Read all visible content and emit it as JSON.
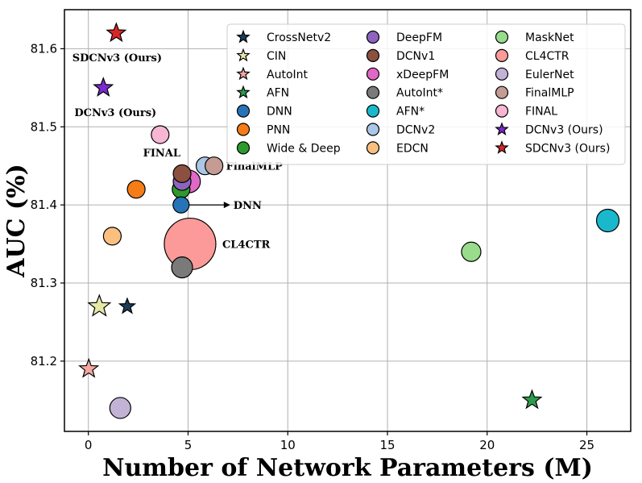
{
  "chart_data": {
    "type": "scatter",
    "title": "",
    "xlabel": "Number of Network Parameters (M)",
    "ylabel": "AUC (%)",
    "xlim": [
      -1.2,
      27.2
    ],
    "ylim": [
      81.11,
      81.65
    ],
    "xticks": [
      0,
      5,
      10,
      15,
      20,
      25
    ],
    "yticks": [
      81.2,
      81.3,
      81.4,
      81.5,
      81.6
    ],
    "grid": true,
    "legend_position": "top-right",
    "series": [
      {
        "name": "CrossNetv2",
        "marker": "star",
        "color": "#1c3d5a",
        "size": 10,
        "x": 1.95,
        "y": 81.27
      },
      {
        "name": "CIN",
        "marker": "star",
        "color": "#e6e8a8",
        "size": 14,
        "x": 0.55,
        "y": 81.27
      },
      {
        "name": "AutoInt",
        "marker": "star",
        "color": "#f4a6a0",
        "size": 12,
        "x": 0.02,
        "y": 81.19
      },
      {
        "name": "AFN",
        "marker": "star",
        "color": "#2e9a4e",
        "size": 12,
        "x": 22.25,
        "y": 81.15
      },
      {
        "name": "DNN",
        "marker": "circle",
        "color": "#2773b8",
        "size": 10,
        "x": 4.65,
        "y": 81.4
      },
      {
        "name": "PNN",
        "marker": "circle",
        "color": "#f57c16",
        "size": 11,
        "x": 2.4,
        "y": 81.42
      },
      {
        "name": "Wide & Deep",
        "marker": "circle",
        "color": "#2e9a2e",
        "size": 11,
        "x": 4.65,
        "y": 81.42
      },
      {
        "name": "DeepFM",
        "marker": "circle",
        "color": "#8e63c0",
        "size": 11,
        "x": 4.7,
        "y": 81.43
      },
      {
        "name": "DCNv1",
        "marker": "circle",
        "color": "#8b5040",
        "size": 11,
        "x": 4.7,
        "y": 81.44
      },
      {
        "name": "xDeepFM",
        "marker": "circle",
        "color": "#e068c6",
        "size": 14,
        "x": 5.05,
        "y": 81.43
      },
      {
        "name": "AutoInt*",
        "marker": "circle",
        "color": "#7a7a7a",
        "size": 13,
        "x": 4.7,
        "y": 81.32
      },
      {
        "name": "AFN*",
        "marker": "circle",
        "color": "#1ab8cc",
        "size": 14,
        "x": 26.05,
        "y": 81.38
      },
      {
        "name": "DCNv2",
        "marker": "circle",
        "color": "#abc6e6",
        "size": 11,
        "x": 5.85,
        "y": 81.45
      },
      {
        "name": "EDCN",
        "marker": "circle",
        "color": "#fbbf80",
        "size": 11,
        "x": 1.2,
        "y": 81.36
      },
      {
        "name": "MaskNet",
        "marker": "circle",
        "color": "#98dc8c",
        "size": 12,
        "x": 19.2,
        "y": 81.34
      },
      {
        "name": "CL4CTR",
        "marker": "circle",
        "color": "#fb9a98",
        "size": 32,
        "x": 5.1,
        "y": 81.35
      },
      {
        "name": "EulerNet",
        "marker": "circle",
        "color": "#c2b2d6",
        "size": 13,
        "x": 1.6,
        "y": 81.14
      },
      {
        "name": "FinalMLP",
        "marker": "circle",
        "color": "#c49c94",
        "size": 11,
        "x": 6.3,
        "y": 81.45
      },
      {
        "name": "FINAL",
        "marker": "circle",
        "color": "#f7b6d2",
        "size": 11,
        "x": 3.6,
        "y": 81.49
      },
      {
        "name": "DCNv3 (Ours)",
        "marker": "star",
        "color": "#7a2ad0",
        "size": 12,
        "x": 0.75,
        "y": 81.55
      },
      {
        "name": "SDCNv3 (Ours)",
        "marker": "star",
        "color": "#d62728",
        "size": 12,
        "x": 1.4,
        "y": 81.62
      }
    ],
    "annotations": [
      {
        "text": "SDCNv3 (Ours)",
        "target": "SDCNv3 (Ours)"
      },
      {
        "text": "DCNv3 (Ours)",
        "target": "DCNv3 (Ours)"
      },
      {
        "text": "FINAL",
        "target": "FINAL"
      },
      {
        "text": "FinalMLP",
        "target": "FinalMLP"
      },
      {
        "text": "DNN",
        "target": "DNN",
        "arrow": true
      },
      {
        "text": "CL4CTR",
        "target": "CL4CTR"
      }
    ]
  }
}
